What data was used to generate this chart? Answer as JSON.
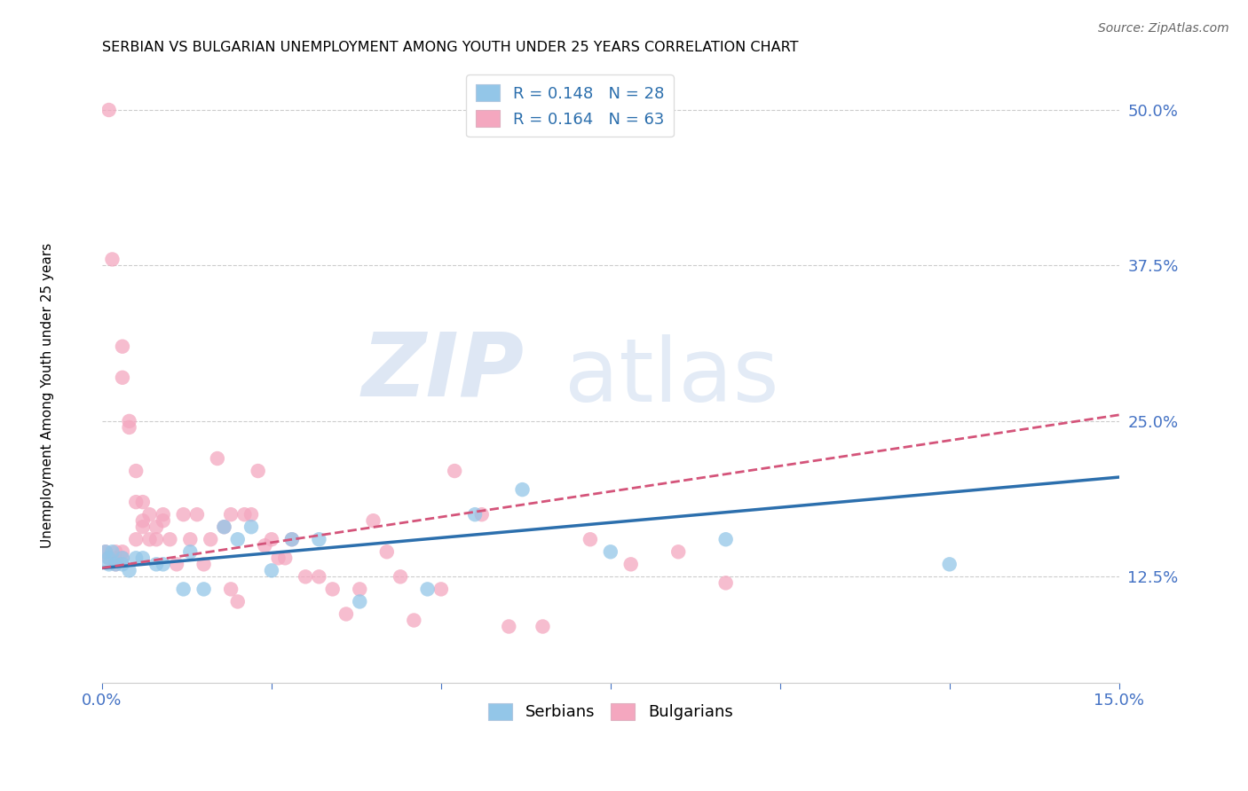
{
  "title": "SERBIAN VS BULGARIAN UNEMPLOYMENT AMONG YOUTH UNDER 25 YEARS CORRELATION CHART",
  "source": "Source: ZipAtlas.com",
  "ylabel": "Unemployment Among Youth under 25 years",
  "x_min": 0.0,
  "x_max": 0.15,
  "y_min": 0.04,
  "y_max": 0.535,
  "serbian_color": "#93c6e8",
  "bulgarian_color": "#f4a7bf",
  "serbian_line_color": "#2c6fad",
  "bulgarian_line_color": "#d4547a",
  "serbian_x": [
    0.0005,
    0.001,
    0.001,
    0.0015,
    0.002,
    0.003,
    0.003,
    0.004,
    0.005,
    0.006,
    0.008,
    0.009,
    0.012,
    0.013,
    0.015,
    0.018,
    0.02,
    0.022,
    0.025,
    0.028,
    0.032,
    0.038,
    0.048,
    0.055,
    0.062,
    0.075,
    0.092,
    0.125
  ],
  "serbian_y": [
    0.145,
    0.14,
    0.135,
    0.145,
    0.135,
    0.14,
    0.135,
    0.13,
    0.14,
    0.14,
    0.135,
    0.135,
    0.115,
    0.145,
    0.115,
    0.165,
    0.155,
    0.165,
    0.13,
    0.155,
    0.155,
    0.105,
    0.115,
    0.175,
    0.195,
    0.145,
    0.155,
    0.135
  ],
  "bulgarian_x": [
    0.0005,
    0.001,
    0.001,
    0.0015,
    0.002,
    0.002,
    0.002,
    0.003,
    0.003,
    0.003,
    0.003,
    0.004,
    0.004,
    0.005,
    0.005,
    0.005,
    0.006,
    0.006,
    0.006,
    0.007,
    0.007,
    0.008,
    0.008,
    0.009,
    0.009,
    0.01,
    0.011,
    0.012,
    0.013,
    0.014,
    0.015,
    0.016,
    0.017,
    0.018,
    0.019,
    0.019,
    0.02,
    0.021,
    0.022,
    0.023,
    0.024,
    0.025,
    0.026,
    0.027,
    0.028,
    0.03,
    0.032,
    0.034,
    0.036,
    0.038,
    0.04,
    0.042,
    0.044,
    0.046,
    0.05,
    0.052,
    0.056,
    0.06,
    0.065,
    0.072,
    0.078,
    0.085,
    0.092
  ],
  "bulgarian_y": [
    0.145,
    0.5,
    0.14,
    0.38,
    0.135,
    0.14,
    0.145,
    0.31,
    0.285,
    0.145,
    0.14,
    0.245,
    0.25,
    0.21,
    0.185,
    0.155,
    0.185,
    0.17,
    0.165,
    0.175,
    0.155,
    0.165,
    0.155,
    0.175,
    0.17,
    0.155,
    0.135,
    0.175,
    0.155,
    0.175,
    0.135,
    0.155,
    0.22,
    0.165,
    0.175,
    0.115,
    0.105,
    0.175,
    0.175,
    0.21,
    0.15,
    0.155,
    0.14,
    0.14,
    0.155,
    0.125,
    0.125,
    0.115,
    0.095,
    0.115,
    0.17,
    0.145,
    0.125,
    0.09,
    0.115,
    0.21,
    0.175,
    0.085,
    0.085,
    0.155,
    0.135,
    0.145,
    0.12
  ]
}
